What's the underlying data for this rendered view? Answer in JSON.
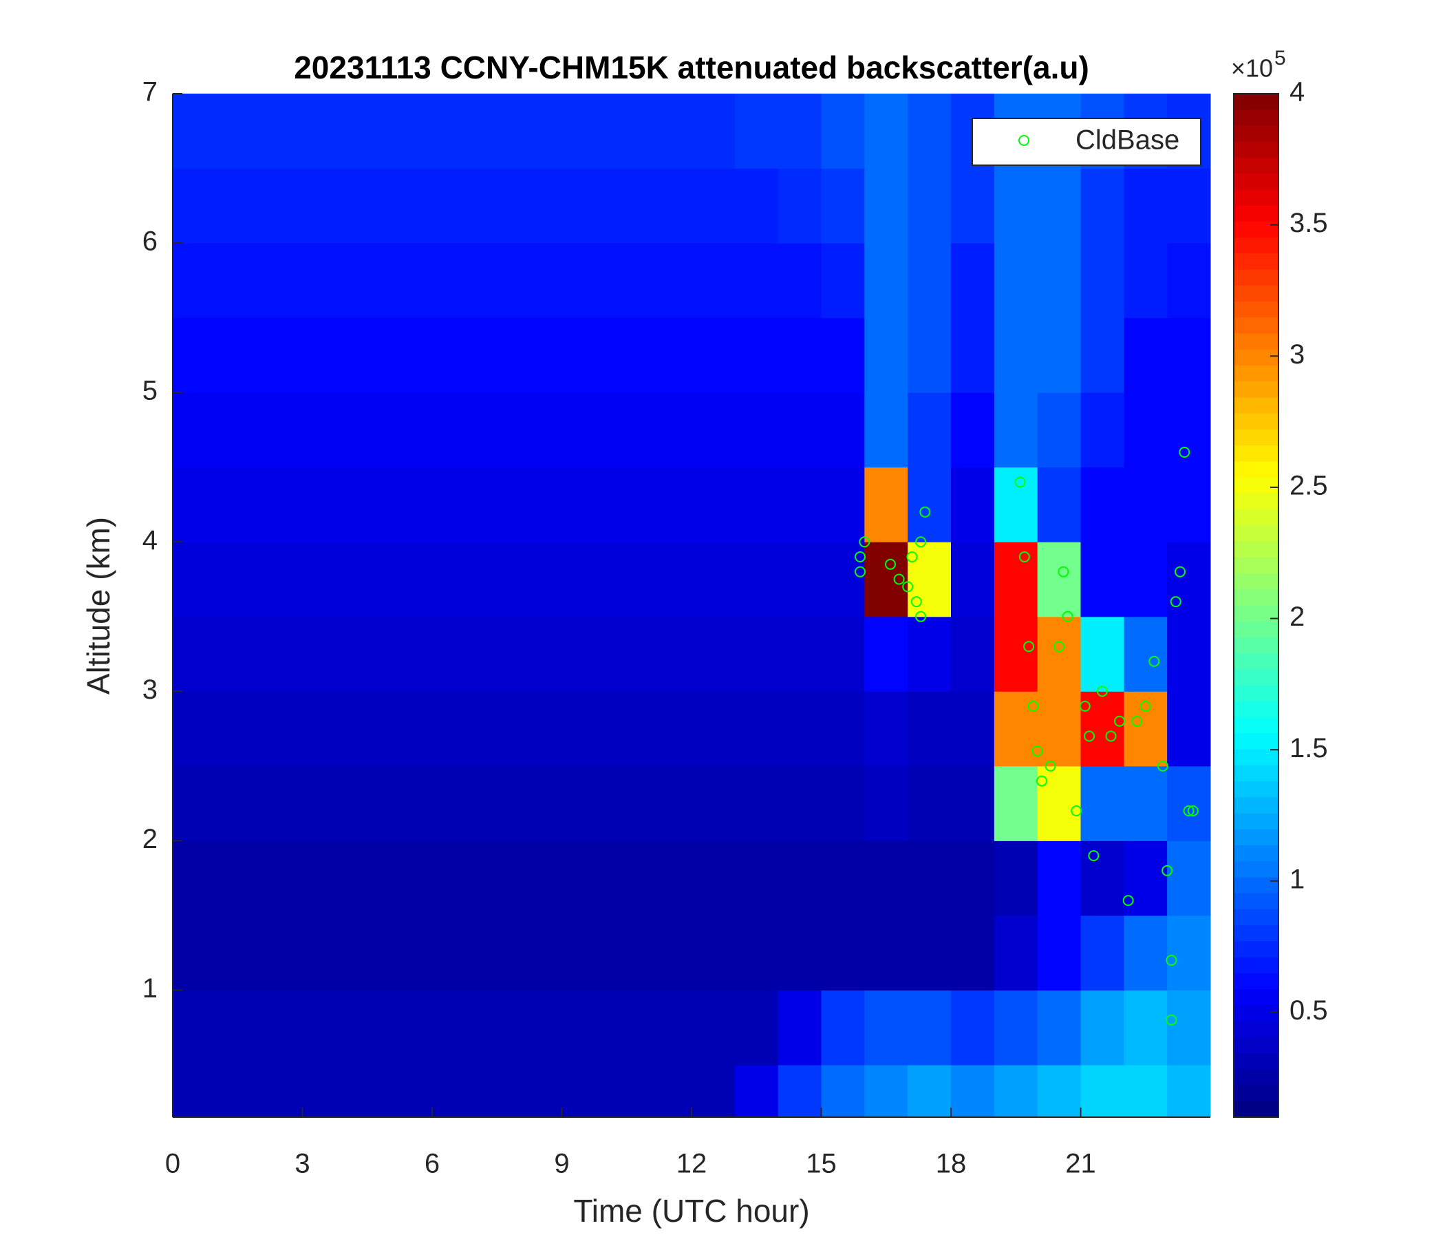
{
  "chart_data": {
    "type": "heatmap",
    "title": "20231113 CCNY-CHM15K attenuated backscatter(a.u)",
    "xlabel": "Time (UTC hour)",
    "ylabel": "Altitude (km)",
    "colormap": "jet",
    "xlim": [
      0,
      24
    ],
    "xticks": [
      0,
      3,
      6,
      9,
      12,
      15,
      18,
      21
    ],
    "ylim": [
      0.15,
      7
    ],
    "yticks": [
      1,
      2,
      3,
      4,
      5,
      6,
      7
    ],
    "clim": [
      0.1,
      4
    ],
    "cticks": [
      0.5,
      1,
      1.5,
      2,
      2.5,
      3,
      3.5,
      4
    ],
    "colorbar_multiplier": {
      "base": "×10",
      "power": "5"
    },
    "x_edges": [
      0,
      1,
      2,
      3,
      4,
      5,
      6,
      7,
      8,
      9,
      10,
      11,
      12,
      13,
      14,
      15,
      16,
      17,
      18,
      19,
      20,
      21,
      22,
      23,
      24
    ],
    "y_edges": [
      0.15,
      0.5,
      1,
      1.5,
      2,
      2.5,
      3,
      3.5,
      4,
      4.5,
      5,
      5.5,
      6,
      6.5,
      7
    ],
    "z": [
      [
        0.3,
        0.3,
        0.3,
        0.3,
        0.3,
        0.3,
        0.3,
        0.3,
        0.3,
        0.3,
        0.3,
        0.3,
        0.3,
        0.5,
        0.8,
        1.0,
        1.1,
        1.2,
        1.1,
        1.2,
        1.3,
        1.4,
        1.4,
        1.3
      ],
      [
        0.3,
        0.3,
        0.3,
        0.3,
        0.3,
        0.3,
        0.3,
        0.3,
        0.3,
        0.3,
        0.3,
        0.3,
        0.3,
        0.3,
        0.5,
        0.8,
        0.9,
        0.9,
        0.8,
        0.9,
        1.0,
        1.2,
        1.3,
        1.2
      ],
      [
        0.25,
        0.25,
        0.25,
        0.25,
        0.25,
        0.25,
        0.25,
        0.25,
        0.25,
        0.25,
        0.25,
        0.25,
        0.25,
        0.25,
        0.25,
        0.25,
        0.25,
        0.25,
        0.25,
        0.4,
        0.6,
        0.8,
        1.0,
        1.1
      ],
      [
        0.25,
        0.25,
        0.25,
        0.25,
        0.25,
        0.25,
        0.25,
        0.25,
        0.25,
        0.25,
        0.25,
        0.25,
        0.25,
        0.25,
        0.25,
        0.25,
        0.25,
        0.25,
        0.25,
        0.3,
        0.6,
        0.4,
        0.5,
        1.0
      ],
      [
        0.3,
        0.3,
        0.3,
        0.3,
        0.3,
        0.3,
        0.3,
        0.3,
        0.3,
        0.3,
        0.3,
        0.3,
        0.3,
        0.3,
        0.3,
        0.3,
        0.35,
        0.3,
        0.3,
        2.0,
        2.5,
        1.0,
        1.0,
        0.9
      ],
      [
        0.35,
        0.35,
        0.35,
        0.35,
        0.35,
        0.35,
        0.35,
        0.35,
        0.35,
        0.35,
        0.35,
        0.35,
        0.35,
        0.35,
        0.35,
        0.35,
        0.4,
        0.35,
        0.35,
        3.0,
        3.0,
        3.5,
        3.0,
        0.5
      ],
      [
        0.4,
        0.4,
        0.4,
        0.4,
        0.4,
        0.4,
        0.4,
        0.4,
        0.4,
        0.4,
        0.4,
        0.4,
        0.4,
        0.4,
        0.4,
        0.4,
        0.6,
        0.5,
        0.4,
        3.5,
        3.0,
        1.5,
        1.0,
        0.5
      ],
      [
        0.45,
        0.45,
        0.45,
        0.45,
        0.45,
        0.45,
        0.45,
        0.45,
        0.45,
        0.45,
        0.45,
        0.45,
        0.45,
        0.45,
        0.45,
        0.45,
        4.0,
        2.5,
        0.45,
        3.5,
        2.0,
        0.6,
        0.6,
        0.5
      ],
      [
        0.5,
        0.5,
        0.5,
        0.5,
        0.5,
        0.5,
        0.5,
        0.5,
        0.5,
        0.5,
        0.5,
        0.5,
        0.5,
        0.5,
        0.5,
        0.5,
        3.0,
        0.8,
        0.5,
        1.5,
        0.8,
        0.6,
        0.6,
        0.6
      ],
      [
        0.55,
        0.55,
        0.55,
        0.55,
        0.55,
        0.55,
        0.55,
        0.55,
        0.55,
        0.55,
        0.55,
        0.55,
        0.55,
        0.55,
        0.55,
        0.55,
        1.0,
        0.8,
        0.6,
        1.0,
        0.9,
        0.7,
        0.6,
        0.6
      ],
      [
        0.6,
        0.6,
        0.6,
        0.6,
        0.6,
        0.6,
        0.6,
        0.6,
        0.6,
        0.6,
        0.6,
        0.6,
        0.6,
        0.6,
        0.6,
        0.6,
        1.0,
        0.9,
        0.7,
        1.0,
        1.0,
        0.8,
        0.6,
        0.6
      ],
      [
        0.65,
        0.65,
        0.65,
        0.65,
        0.65,
        0.65,
        0.65,
        0.65,
        0.65,
        0.65,
        0.65,
        0.65,
        0.65,
        0.65,
        0.65,
        0.7,
        1.0,
        0.9,
        0.7,
        1.0,
        1.0,
        0.8,
        0.7,
        0.65
      ],
      [
        0.7,
        0.7,
        0.7,
        0.7,
        0.7,
        0.7,
        0.7,
        0.7,
        0.7,
        0.7,
        0.7,
        0.7,
        0.7,
        0.7,
        0.75,
        0.8,
        1.0,
        0.9,
        0.8,
        1.0,
        1.0,
        0.8,
        0.7,
        0.7
      ],
      [
        0.75,
        0.75,
        0.75,
        0.75,
        0.75,
        0.75,
        0.75,
        0.75,
        0.75,
        0.75,
        0.75,
        0.75,
        0.75,
        0.8,
        0.8,
        0.9,
        1.0,
        0.9,
        0.8,
        1.0,
        1.0,
        0.9,
        0.8,
        0.75
      ]
    ],
    "legend": "northeast",
    "series": [
      {
        "name": "CldBase",
        "type": "scatter",
        "color": "#00ff00",
        "x": [
          15.9,
          15.9,
          16.0,
          16.6,
          16.8,
          17.0,
          17.1,
          17.2,
          17.3,
          17.3,
          17.4,
          19.6,
          19.7,
          19.8,
          19.9,
          20.0,
          20.1,
          20.3,
          20.5,
          20.6,
          20.7,
          20.9,
          21.1,
          21.2,
          21.3,
          21.5,
          21.7,
          21.9,
          22.1,
          22.3,
          22.5,
          22.7,
          22.9,
          23.0,
          23.1,
          23.1,
          23.2,
          23.3,
          23.4,
          23.5,
          23.6
        ],
        "y": [
          3.8,
          3.9,
          4.0,
          3.85,
          3.75,
          3.7,
          3.9,
          3.6,
          4.0,
          3.5,
          4.2,
          4.4,
          3.9,
          3.3,
          2.9,
          2.6,
          2.4,
          2.5,
          3.3,
          3.8,
          3.5,
          2.2,
          2.9,
          2.7,
          1.9,
          3.0,
          2.7,
          2.8,
          1.6,
          2.8,
          2.9,
          3.2,
          2.5,
          1.8,
          1.2,
          0.8,
          3.6,
          3.8,
          4.6,
          2.2,
          2.2
        ]
      }
    ]
  }
}
